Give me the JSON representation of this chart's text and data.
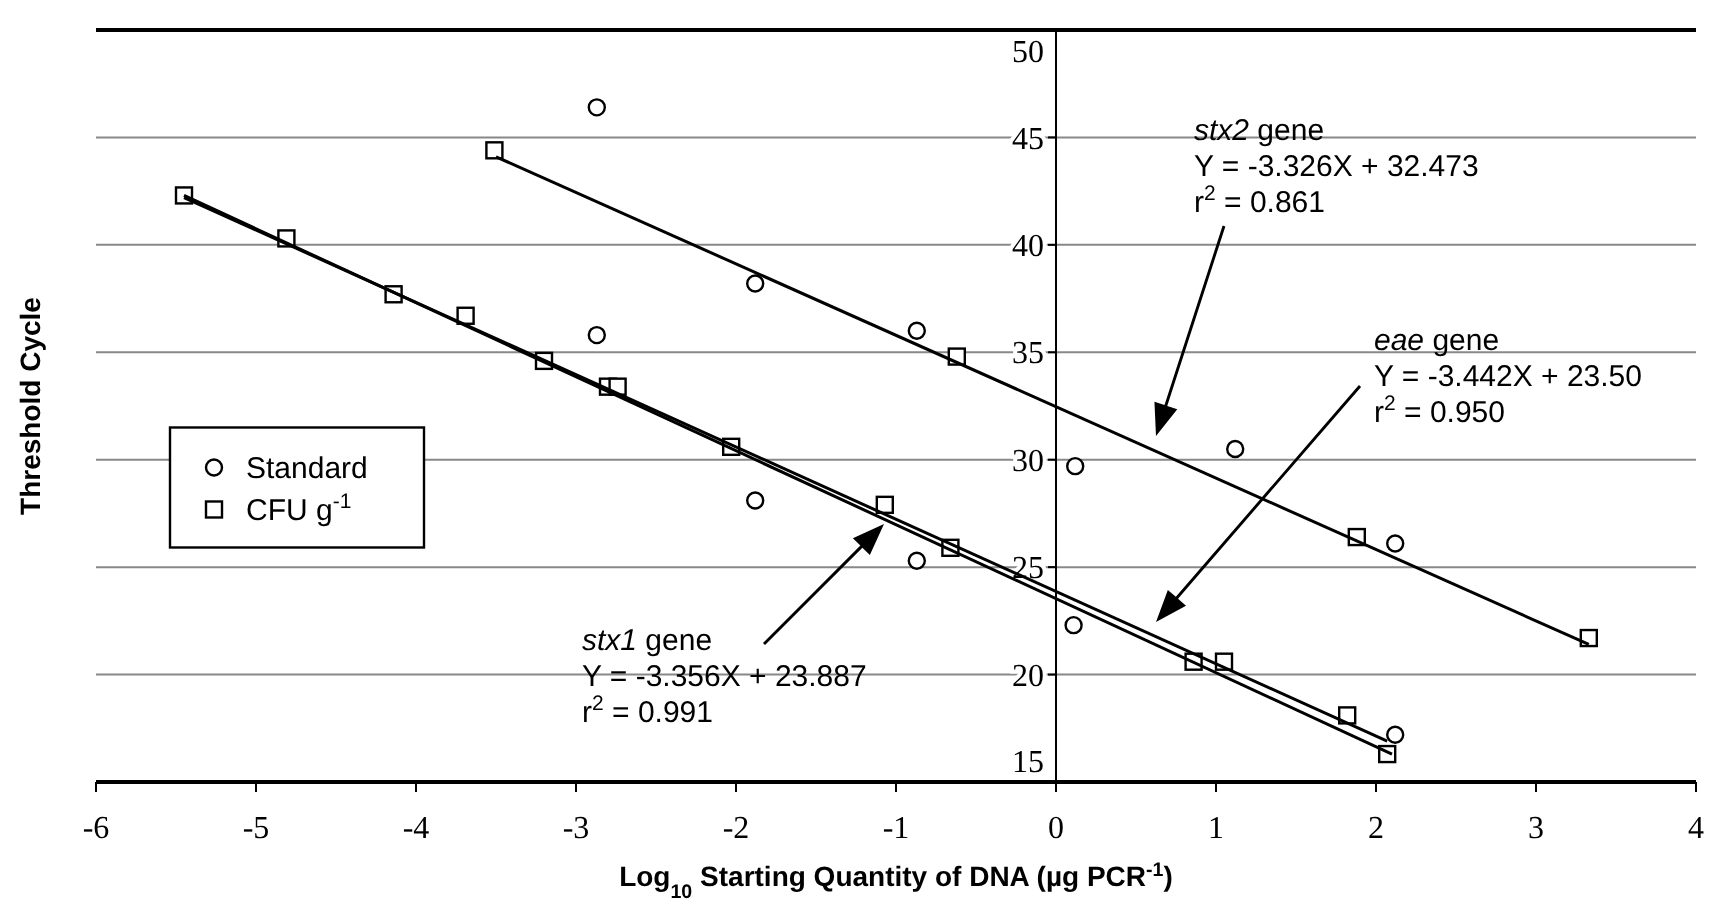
{
  "chart_data": {
    "type": "scatter",
    "xlabel": "Log$_{10}$ Starting Quantity of DNA (µg PCR$^{-1}$)",
    "ylabel": "Threshold Cycle",
    "xlim": [
      -6,
      4
    ],
    "xticks": [
      -6,
      -5,
      -4,
      -3,
      -2,
      -1,
      0,
      1,
      2,
      3,
      4
    ],
    "ylim": [
      15,
      50
    ],
    "yticks": [
      15,
      20,
      25,
      30,
      35,
      40,
      45,
      50
    ],
    "grid": "y",
    "legend": "left",
    "series": [
      {
        "name": "Standard",
        "marker": "circle",
        "color": "#000000",
        "x": [
          -2.87,
          -1.88,
          -2.87,
          -0.87,
          -1.88,
          -0.87,
          0.12,
          1.12,
          0.11,
          2.12,
          2.12
        ],
        "values": [
          46.4,
          38.2,
          35.8,
          36.0,
          28.1,
          25.3,
          29.7,
          30.5,
          22.3,
          26.1,
          17.2
        ]
      },
      {
        "name": "CFU g$^{-1}$",
        "marker": "square",
        "color": "#000000",
        "x": [
          -5.45,
          -4.81,
          -4.14,
          -3.69,
          -3.2,
          -2.8,
          -2.74,
          -2.03,
          -1.07,
          -0.66,
          0.86,
          1.05,
          1.82,
          2.07,
          -3.51,
          -0.62,
          1.88,
          3.33
        ],
        "values": [
          42.3,
          40.3,
          37.7,
          36.7,
          34.6,
          33.4,
          33.4,
          30.6,
          27.9,
          25.9,
          20.6,
          20.6,
          18.1,
          16.3,
          44.4,
          34.8,
          26.4,
          21.7
        ]
      },
      {
        "type": "line",
        "marker": "none",
        "color": "#000000",
        "x": [
          -3.5,
          3.33
        ],
        "values": [
          44.1,
          21.4
        ]
      },
      {
        "type": "line",
        "marker": "none",
        "color": "#000000",
        "x": [
          -5.45,
          2.1
        ],
        "values": [
          42.3,
          16.3
        ]
      },
      {
        "type": "line",
        "marker": "none",
        "color": "#000000",
        "x": [
          -5.45,
          2.07
        ],
        "values": [
          42.2,
          16.9
        ]
      }
    ],
    "annotations": [
      "stx2 gene\nY = -3.326X + 32.473\nr$^{2}$ = 0.861",
      "eae gene\nY = -3.442X + 23.50\nr$^{2}$ = 0.950",
      "stx1 gene\nY = -3.356X + 23.887\nr$^{2}$ = 0.991"
    ]
  }
}
